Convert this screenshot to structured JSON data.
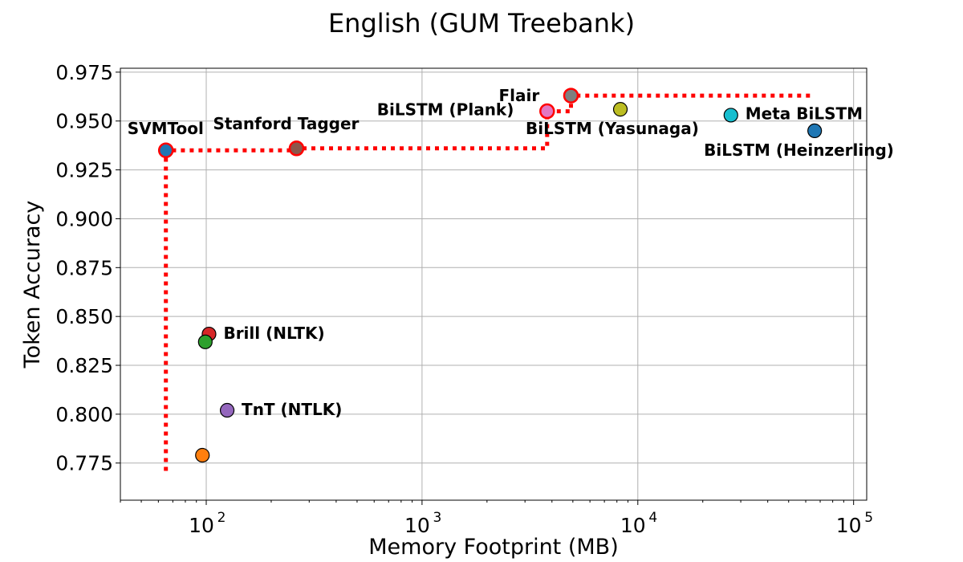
{
  "chart_data": {
    "type": "scatter",
    "title": "English (GUM Treebank)",
    "xlabel": "Memory Footprint (MB)",
    "ylabel": "Token Accuracy",
    "x_scale": "log",
    "xlim": [
      40,
      115000
    ],
    "ylim": [
      0.756,
      0.977
    ],
    "grid": true,
    "x_ticks": [
      {
        "value": 100,
        "label": "10",
        "exp": "2"
      },
      {
        "value": 1000,
        "label": "10",
        "exp": "3"
      },
      {
        "value": 10000,
        "label": "10",
        "exp": "4"
      },
      {
        "value": 100000,
        "label": "10",
        "exp": "5"
      }
    ],
    "y_ticks": [
      {
        "value": 0.775,
        "label": "0.775"
      },
      {
        "value": 0.8,
        "label": "0.800"
      },
      {
        "value": 0.825,
        "label": "0.825"
      },
      {
        "value": 0.85,
        "label": "0.850"
      },
      {
        "value": 0.875,
        "label": "0.875"
      },
      {
        "value": 0.9,
        "label": "0.900"
      },
      {
        "value": 0.925,
        "label": "0.925"
      },
      {
        "value": 0.95,
        "label": "0.950"
      },
      {
        "value": 0.975,
        "label": "0.975"
      }
    ],
    "points": [
      {
        "label": "SVMTool",
        "x": 65,
        "y": 0.935,
        "color": "#1f77b4",
        "pareto": true
      },
      {
        "label": "Stanford Tagger",
        "x": 262,
        "y": 0.936,
        "color": "#8c564b",
        "pareto": true
      },
      {
        "label": "BiLSTM (Plank)",
        "x": 3800,
        "y": 0.955,
        "color": "#e377c2",
        "pareto": true
      },
      {
        "label": "Flair",
        "x": 4900,
        "y": 0.963,
        "color": "#7f7f7f",
        "pareto": true
      },
      {
        "label": "BiLSTM (Yasunaga)",
        "x": 8300,
        "y": 0.956,
        "color": "#bcbd22",
        "pareto": false
      },
      {
        "label": "Meta BiLSTM",
        "x": 27000,
        "y": 0.953,
        "color": "#17becf",
        "pareto": false
      },
      {
        "label": "BiLSTM (Heinzerling)",
        "x": 66000,
        "y": 0.945,
        "color": "#1f77b4",
        "pareto": false
      },
      {
        "label": "Brill (NLTK)",
        "x": 103,
        "y": 0.841,
        "color": "#d62728",
        "pareto": false
      },
      {
        "label": "",
        "x": 99,
        "y": 0.837,
        "color": "#2ca02c",
        "pareto": false
      },
      {
        "label": "TnT (NTLK)",
        "x": 125,
        "y": 0.802,
        "color": "#9467bd",
        "pareto": false
      },
      {
        "label": "",
        "x": 96,
        "y": 0.779,
        "color": "#ff7f0e",
        "pareto": false
      }
    ],
    "pareto_frontier": [
      [
        65,
        0.771
      ],
      [
        65,
        0.935
      ],
      [
        262,
        0.935
      ],
      [
        262,
        0.936
      ],
      [
        3800,
        0.936
      ],
      [
        3800,
        0.955
      ],
      [
        4900,
        0.955
      ],
      [
        4900,
        0.963
      ],
      [
        66000,
        0.963
      ]
    ],
    "frontier_color": "#ff0000"
  }
}
